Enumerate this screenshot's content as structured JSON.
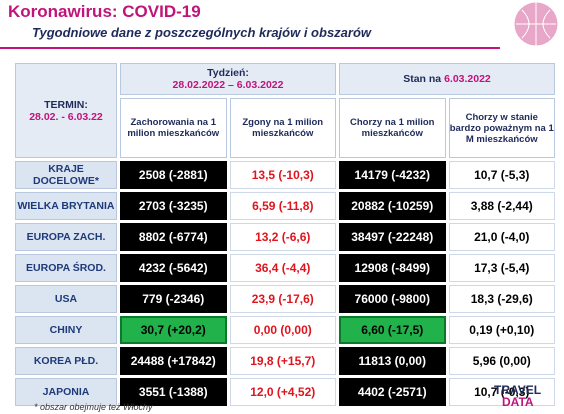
{
  "header": {
    "title": "Koronawirus: COVID-19",
    "subtitle": "Tygodniowe dane z poszczególnych krajów i obszarów"
  },
  "table": {
    "termin_label": "TERMIN:",
    "termin_dates": "28.02. - 6.03.22",
    "week_label": "Tydzień:",
    "week_dates": "28.02.2022 – 6.03.2022",
    "state_label": "Stan na",
    "state_date": "6.03.2022",
    "columns": [
      "Zachorowania na 1 milion mieszkańców",
      "Zgony na 1 milion mieszkańców",
      "Chorzy na 1 milion mieszkańców",
      "Chorzy w stanie bardzo poważnym na 1 M mieszkańców"
    ],
    "rows": [
      {
        "label": "KRAJE DOCELOWE*",
        "cells": [
          "2508 (-2881)",
          "13,5 (-10,3)",
          "14179 (-4232)",
          "10,7 (-5,3)"
        ]
      },
      {
        "label": "WIELKA BRYTANIA",
        "cells": [
          "2703 (-3235)",
          "6,59 (-11,8)",
          "20882 (-10259)",
          "3,88 (-2,44)"
        ]
      },
      {
        "label": "EUROPA ZACH.",
        "cells": [
          "8802 (-6774)",
          "13,2 (-6,6)",
          "38497 (-22248)",
          "21,0 (-4,0)"
        ]
      },
      {
        "label": "EUROPA ŚROD.",
        "cells": [
          "4232 (-5642)",
          "36,4 (-4,4)",
          "12908 (-8499)",
          "17,3 (-5,4)"
        ]
      },
      {
        "label": "USA",
        "cells": [
          "779 (-2346)",
          "23,9 (-17,6)",
          "76000 (-9800)",
          "18,3 (-29,6)"
        ]
      },
      {
        "label": "CHINY",
        "cells": [
          "30,7 (+20,2)",
          "0,00 (0,00)",
          "6,60 (-17,5)",
          "0,19 (+0,10)"
        ]
      },
      {
        "label": "KOREA PŁD.",
        "cells": [
          "24488 (+17842)",
          "19,8 (+15,7)",
          "11813 (0,00)",
          "5,96 (0,00)"
        ]
      },
      {
        "label": "JAPONIA",
        "cells": [
          "3551 (-1388)",
          "12,0 (+4,52)",
          "4402 (-2571)",
          "10,7 (-0,3)"
        ]
      }
    ]
  },
  "footnote": "* obszar obejmuje też Włochy",
  "logo": {
    "line1": "TRAVEL",
    "line2": "DATA"
  }
}
